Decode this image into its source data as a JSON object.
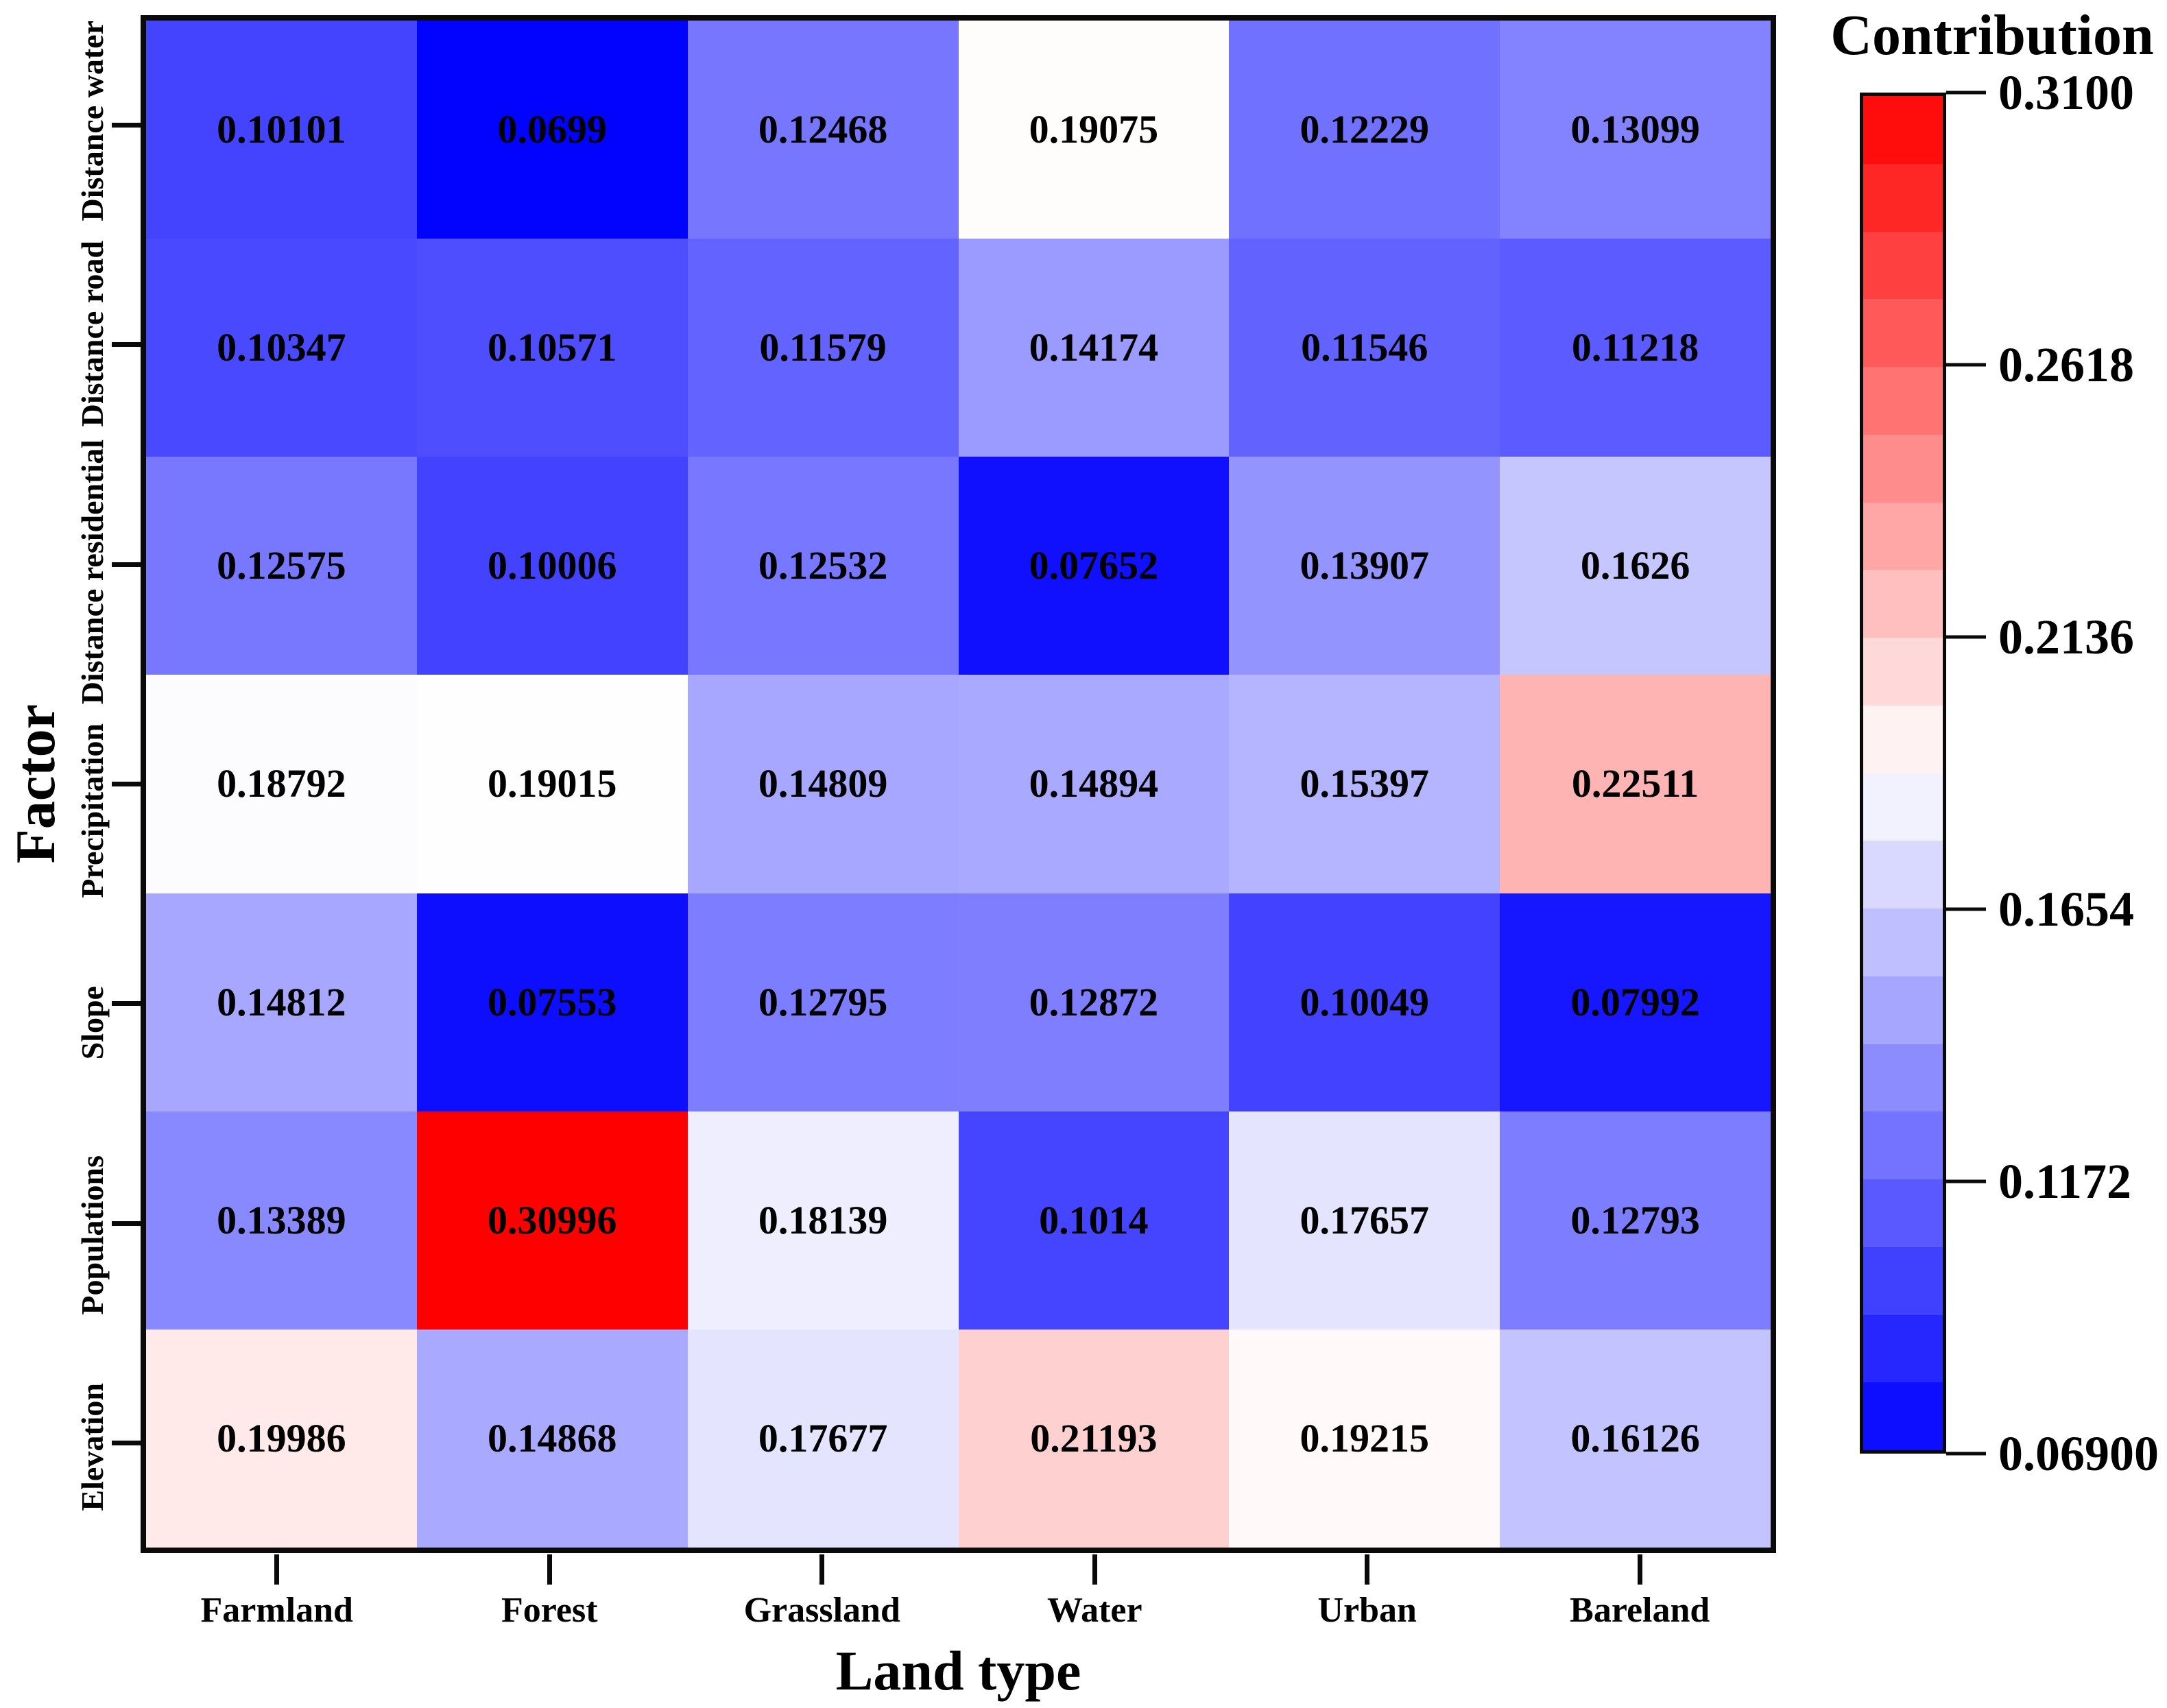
{
  "figure": {
    "background": "#ffffff",
    "text_color": "#000000",
    "axis_color": "#0a0a0a"
  },
  "chart_data": {
    "type": "heatmap",
    "title": "",
    "xlabel": "Land type",
    "ylabel": "Factor",
    "x_categories": [
      "Farmland",
      "Forest",
      "Grassland",
      "Water",
      "Urban",
      "Bareland"
    ],
    "y_categories": [
      "Distance water",
      "Distance road",
      "Distance residential",
      "Precipitation",
      "Slope",
      "Populations",
      "Elevation"
    ],
    "values": [
      [
        0.10101,
        0.0699,
        0.12468,
        0.19075,
        0.12229,
        0.13099
      ],
      [
        0.10347,
        0.10571,
        0.11579,
        0.14174,
        0.11546,
        0.11218
      ],
      [
        0.12575,
        0.10006,
        0.12532,
        0.07652,
        0.13907,
        0.1626
      ],
      [
        0.18792,
        0.19015,
        0.14809,
        0.14894,
        0.15397,
        0.22511
      ],
      [
        0.14812,
        0.07553,
        0.12795,
        0.12872,
        0.10049,
        0.07992
      ],
      [
        0.13389,
        0.30996,
        0.18139,
        0.1014,
        0.17657,
        0.12793
      ],
      [
        0.19986,
        0.14868,
        0.17677,
        0.21193,
        0.19215,
        0.16126
      ]
    ],
    "cell_labels": [
      [
        "0.10101",
        "0.0699",
        "0.12468",
        "0.19075",
        "0.12229",
        "0.13099"
      ],
      [
        "0.10347",
        "0.10571",
        "0.11579",
        "0.14174",
        "0.11546",
        "0.11218"
      ],
      [
        "0.12575",
        "0.10006",
        "0.12532",
        "0.07652",
        "0.13907",
        "0.1626"
      ],
      [
        "0.18792",
        "0.19015",
        "0.14809",
        "0.14894",
        "0.15397",
        "0.22511"
      ],
      [
        "0.14812",
        "0.07553",
        "0.12795",
        "0.12872",
        "0.10049",
        "0.07992"
      ],
      [
        "0.13389",
        "0.30996",
        "0.18139",
        "0.1014",
        "0.17657",
        "0.12793"
      ],
      [
        "0.19986",
        "0.14868",
        "0.17677",
        "0.21193",
        "0.19215",
        "0.16126"
      ]
    ],
    "colorbar": {
      "title": "Contribution",
      "tick_labels": [
        "0.3100",
        "0.2618",
        "0.2136",
        "0.1654",
        "0.1172",
        "0.06900"
      ],
      "vmin": 0.069,
      "vmax": 0.31,
      "colormap": "blue-white-red",
      "segments": 20,
      "position": "right"
    },
    "layout": {
      "grid": false,
      "legend": false,
      "cell_text": true
    }
  }
}
